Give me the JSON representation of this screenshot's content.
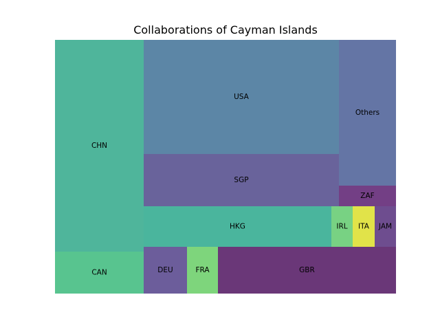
{
  "chart_data": {
    "type": "treemap",
    "title": "Collaborations of Cayman Islands",
    "cells": [
      {
        "label": "CHN",
        "color": "#4fb59b"
      },
      {
        "label": "CAN",
        "color": "#58c48f"
      },
      {
        "label": "USA",
        "color": "#5c86a6"
      },
      {
        "label": "Others",
        "color": "#6475a5"
      },
      {
        "label": "SGP",
        "color": "#69639b"
      },
      {
        "label": "ZAF",
        "color": "#733f85"
      },
      {
        "label": "HKG",
        "color": "#4ab59d"
      },
      {
        "label": "IRL",
        "color": "#78d283"
      },
      {
        "label": "ITA",
        "color": "#e1e349"
      },
      {
        "label": "JAM",
        "color": "#6e4d8f"
      },
      {
        "label": "DEU",
        "color": "#6c5d9b"
      },
      {
        "label": "FRA",
        "color": "#7ed57c"
      },
      {
        "label": "GBR",
        "color": "#6a3778"
      }
    ]
  }
}
